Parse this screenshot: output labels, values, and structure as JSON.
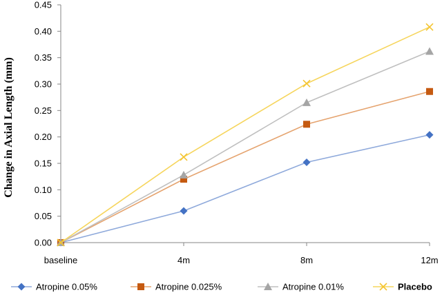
{
  "chart_data": {
    "type": "line",
    "title": "",
    "xlabel": "",
    "ylabel": "Change in Axial Length (mm)",
    "categories": [
      "baseline",
      "4m",
      "8m",
      "12m"
    ],
    "ylim": [
      0,
      0.45
    ],
    "yticks": [
      "0.00",
      "0.05",
      "0.10",
      "0.15",
      "0.20",
      "0.25",
      "0.30",
      "0.35",
      "0.40",
      "0.45"
    ],
    "grid": false,
    "legend_position": "bottom",
    "series": [
      {
        "name": "Atropine 0.05%",
        "values": [
          0,
          0.06,
          0.152,
          0.204
        ],
        "color": "#4472C4",
        "line_color": "#8EA9DB",
        "marker": "diamond"
      },
      {
        "name": "Atropine 0.025%",
        "values": [
          0,
          0.12,
          0.224,
          0.286
        ],
        "color": "#C55A11",
        "line_color": "#E5A36E",
        "marker": "square"
      },
      {
        "name": "Atropine 0.01%",
        "values": [
          0,
          0.128,
          0.265,
          0.362
        ],
        "color": "#A5A5A5",
        "line_color": "#BFBFBF",
        "marker": "triangle"
      },
      {
        "name": "Placebo",
        "values": [
          0,
          0.162,
          0.301,
          0.408
        ],
        "color": "#F4C430",
        "line_color": "#F6D55C",
        "marker": "x"
      }
    ]
  }
}
